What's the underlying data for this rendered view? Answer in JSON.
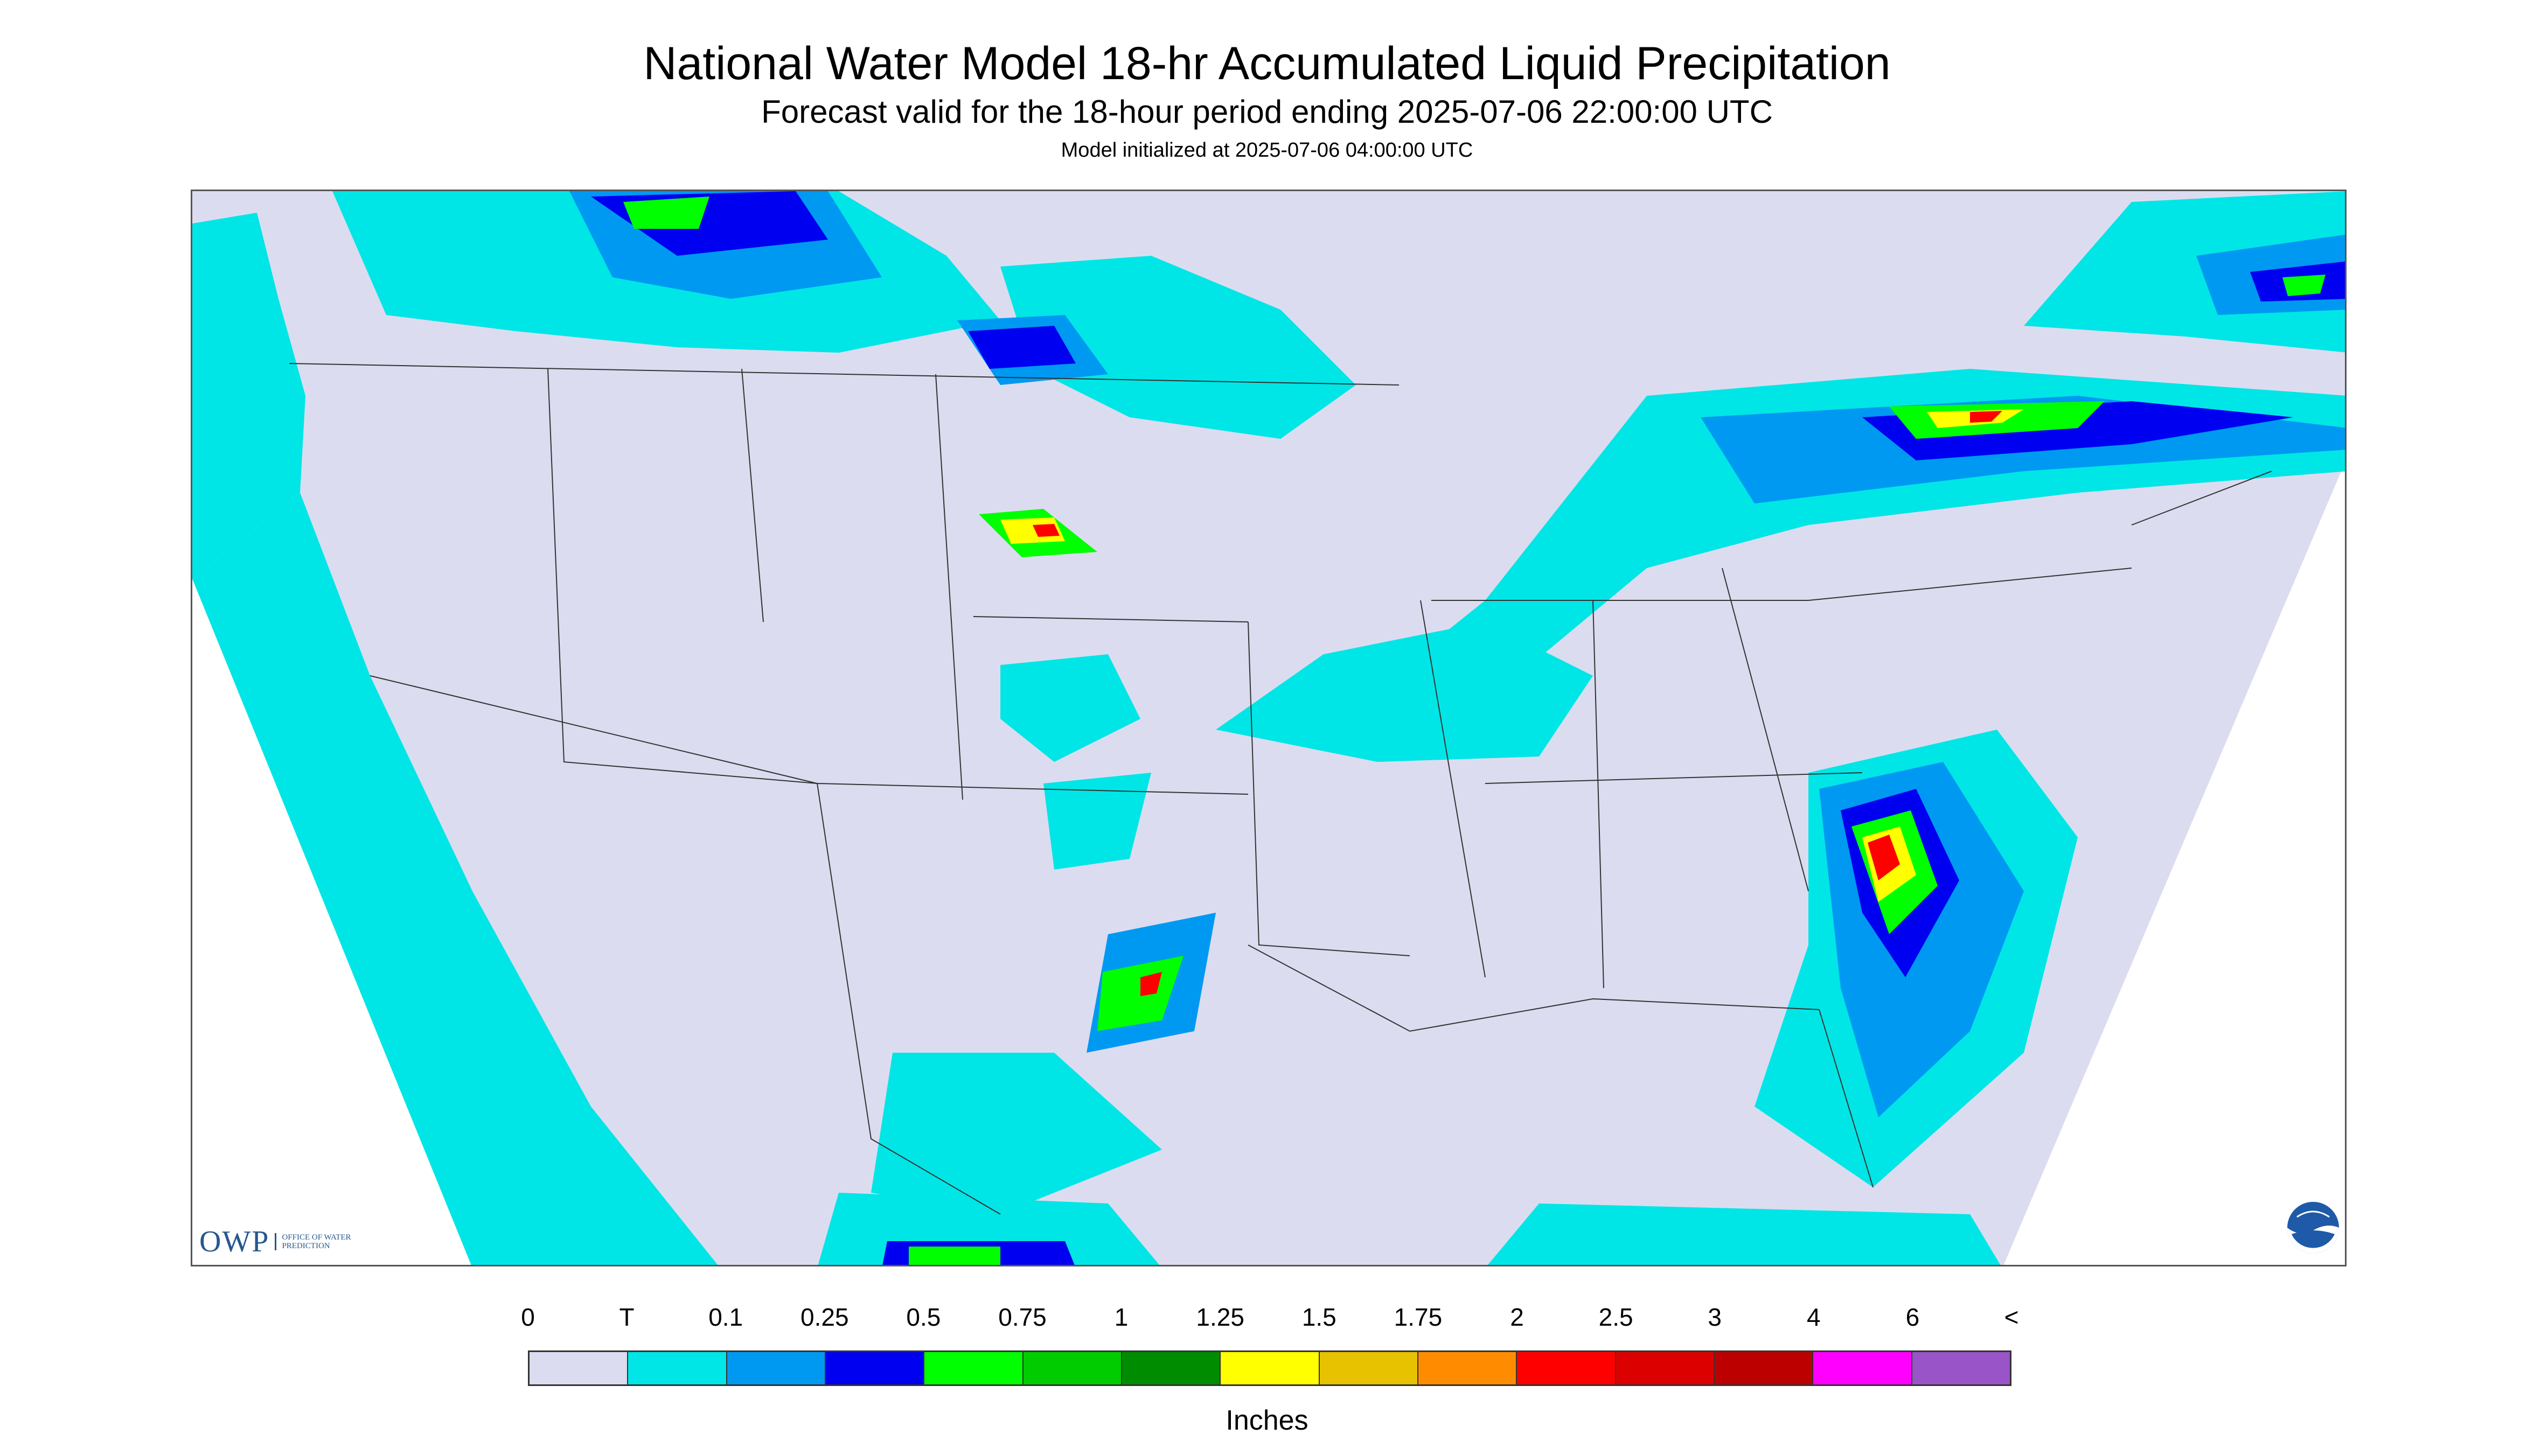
{
  "header": {
    "title": "National Water Model 18-hr Accumulated Liquid Precipitation",
    "subtitle": "Forecast valid for the 18-hour period ending 2025-07-06 22:00:00 UTC",
    "init_line": "Model initialized at 2025-07-06 04:00:00 UTC"
  },
  "legend": {
    "unit": "Inches",
    "labels": [
      "0",
      "T",
      "0.1",
      "0.25",
      "0.5",
      "0.75",
      "1",
      "1.25",
      "1.5",
      "1.75",
      "2",
      "2.5",
      "3",
      "4",
      "6",
      "<"
    ],
    "colors": [
      "#dcdcf0",
      "#00e6e6",
      "#0099f2",
      "#0000f0",
      "#00ff00",
      "#00cc00",
      "#008c00",
      "#ffff00",
      "#e6c200",
      "#ff8c00",
      "#ff0000",
      "#dc0000",
      "#bc0000",
      "#ff00ff",
      "#9954c8"
    ]
  },
  "logos": {
    "owp_mark": "OWP",
    "owp_text": "OFFICE OF WATER PREDICTION",
    "noaa_text": "NOAA"
  }
}
